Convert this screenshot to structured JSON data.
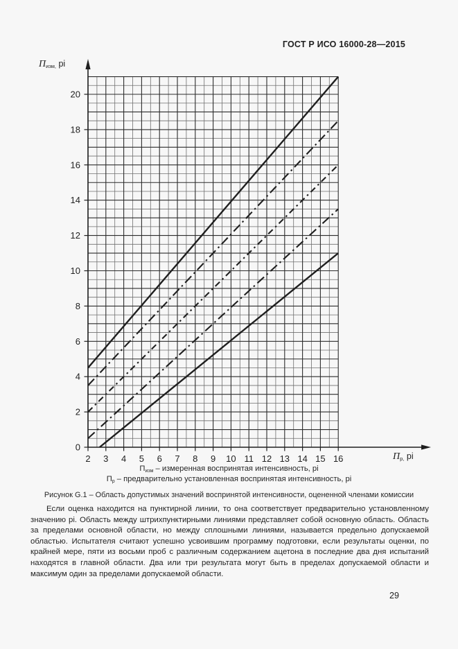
{
  "doc": {
    "header": "ГОСТ Р ИСО 16000-28—2015",
    "figure_caption": "Рисунок G.1 – Область допустимых значений воспринятой интенсивности, оцененной членами комиссии",
    "body_paragraph": "Если оценка находится на пунктирной линии, то она соответствует предварительно установленному значению pi. Область между штрихпунктирными линиями представляет собой основную область. Область за пределами основной области, но между сплошными линиями, называется предельно допускаемой областью. Испытателя считают успешно усвоившим программу подготовки, если результаты оценки, по крайней мере, пяти из восьми проб с различным содержанием ацетона в последние два дня испытаний находятся в главной области. Два или три результата могут быть в пределах допускаемой области и максимум один за пределами допускаемой области.",
    "page_number": "29"
  },
  "figure": {
    "y_axis_label": {
      "base": "П",
      "sub": "изм,",
      "suffix": " pi"
    },
    "x_axis_label": {
      "base": "П",
      "sub": "р,",
      "suffix": " pi"
    },
    "legend": {
      "line1": {
        "base": "П",
        "sub": "изм",
        "text": " – измеренная воспринятая интенсивность, pi"
      },
      "line2": {
        "base": "П",
        "sub": "р",
        "text": " – предварительно установленная воспринятая интенсивность, pi"
      }
    }
  },
  "chart_data": {
    "type": "line",
    "title": "Рисунок G.1 – Область допустимых значений воспринятой интенсивности, оцененной членами комиссии",
    "xlabel": "Пр, pi",
    "ylabel": "Пизм, pi",
    "xlim": [
      2,
      16
    ],
    "ylim": [
      0,
      21
    ],
    "x_ticks": [
      2,
      3,
      4,
      5,
      6,
      7,
      8,
      9,
      10,
      11,
      12,
      13,
      14,
      15,
      16
    ],
    "y_ticks": [
      0,
      2,
      4,
      6,
      8,
      10,
      12,
      14,
      16,
      18,
      20
    ],
    "grid": true,
    "grid_step": 0.5,
    "ink": "#1f1f1f",
    "grid_major_color": "#2b2b2b",
    "grid_minor_color": "#6f6f6f",
    "legend_position": "below",
    "series": [
      {
        "name": "upper-permissible-limit",
        "style": "solid",
        "points": [
          [
            2,
            4.5
          ],
          [
            16,
            21
          ]
        ]
      },
      {
        "name": "upper-main-region",
        "style": "dashdot",
        "points": [
          [
            2,
            3.5
          ],
          [
            16,
            18.5
          ]
        ]
      },
      {
        "name": "preset-value-line",
        "style": "dashdot-short",
        "points": [
          [
            2,
            2
          ],
          [
            16,
            16
          ]
        ]
      },
      {
        "name": "lower-main-region",
        "style": "dashdot",
        "points": [
          [
            2,
            0.5
          ],
          [
            16,
            13.5
          ]
        ]
      },
      {
        "name": "lower-permissible-limit",
        "style": "solid",
        "points": [
          [
            2.65,
            0
          ],
          [
            16,
            11
          ]
        ]
      }
    ]
  }
}
